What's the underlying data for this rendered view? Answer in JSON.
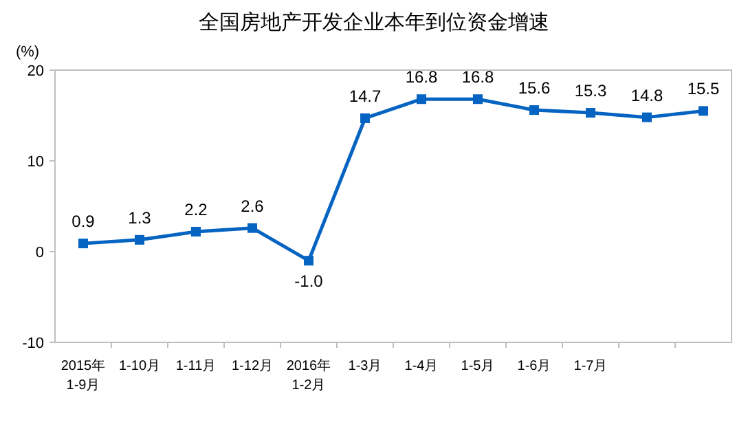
{
  "chart_data": {
    "type": "line",
    "title": "全国房地产开发企业本年到位资金增速",
    "ylabel": "(%)",
    "categories": [
      "2015年\n1-9月",
      "1-10月",
      "1-11月",
      "1-12月",
      "2016年\n1-2月",
      "1-3月",
      "1-4月",
      "1-5月",
      "1-6月",
      "1-7月",
      null,
      null
    ],
    "series": [
      {
        "color": "#0563c1",
        "values": [
          0.9,
          1.3,
          2.2,
          2.6,
          -1.0,
          14.7,
          16.8,
          16.8,
          15.6,
          15.3,
          14.8,
          15.5
        ],
        "value_labels": [
          "0.9",
          "1.3",
          "2.2",
          "2.6",
          "-1.0",
          "14.7",
          "16.8",
          "16.8",
          "15.6",
          "15.3",
          "14.8",
          "15.5"
        ]
      }
    ],
    "ylim": [
      -10,
      20
    ],
    "yticks": [
      -10,
      0,
      10,
      20
    ],
    "marker": "square",
    "grid": false
  }
}
